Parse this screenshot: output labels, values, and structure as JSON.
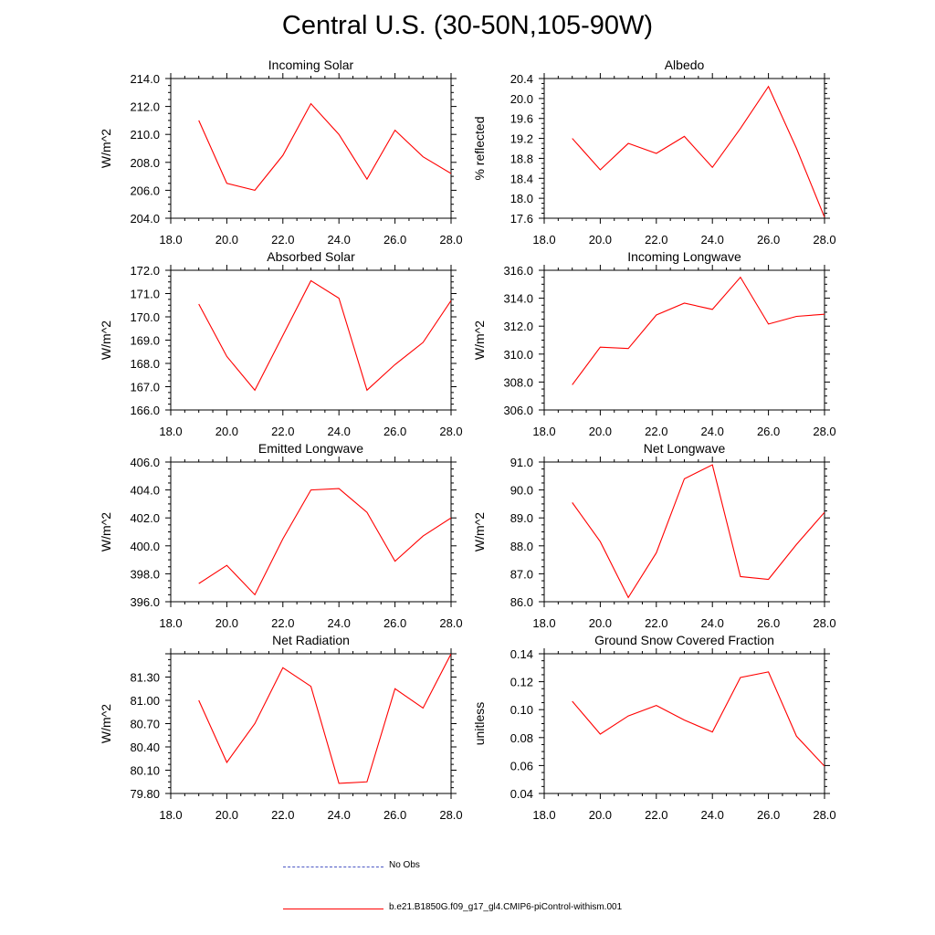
{
  "page": {
    "title": "Central U.S. (30-50N,105-90W)"
  },
  "legend": {
    "entries": [
      {
        "label": "No Obs",
        "color": "#4b57c4",
        "style": "dashed"
      },
      {
        "label": "b.e21.B1850G.f09_g17_gl4.CMIP6-piControl-withism.001",
        "color": "#ff0000",
        "style": "solid"
      }
    ]
  },
  "chart_data": [
    {
      "type": "line",
      "title": "Incoming Solar",
      "ylabel": "W/m^2",
      "xlim": [
        18,
        28
      ],
      "ylim": [
        204,
        214
      ],
      "xticks": [
        18,
        20,
        22,
        24,
        26,
        28
      ],
      "xtick_labels": [
        "18.0",
        "20.0",
        "22.0",
        "24.0",
        "26.0",
        "28.0"
      ],
      "yticks": [
        204,
        206,
        208,
        210,
        212,
        214
      ],
      "ytick_labels": [
        "204.0",
        "206.0",
        "208.0",
        "210.0",
        "212.0",
        "214.0"
      ],
      "x": [
        19,
        20,
        21,
        22,
        23,
        24,
        25,
        26,
        27,
        28
      ],
      "series": [
        {
          "color": "#ff0000",
          "values": [
            211.0,
            206.5,
            206.0,
            208.5,
            212.2,
            210.0,
            206.8,
            210.3,
            208.4,
            207.2
          ]
        }
      ]
    },
    {
      "type": "line",
      "title": "Albedo",
      "ylabel": "% reflected",
      "xlim": [
        18,
        28
      ],
      "ylim": [
        17.6,
        20.4
      ],
      "xticks": [
        18,
        20,
        22,
        24,
        26,
        28
      ],
      "xtick_labels": [
        "18.0",
        "20.0",
        "22.0",
        "24.0",
        "26.0",
        "28.0"
      ],
      "yticks": [
        17.6,
        18.0,
        18.4,
        18.8,
        19.2,
        19.6,
        20.0,
        20.4
      ],
      "ytick_labels": [
        "17.6",
        "18.0",
        "18.4",
        "18.8",
        "19.2",
        "19.6",
        "20.0",
        "20.4"
      ],
      "x": [
        19,
        20,
        21,
        22,
        23,
        24,
        25,
        26,
        27,
        28
      ],
      "series": [
        {
          "color": "#ff0000",
          "values": [
            19.2,
            18.57,
            19.1,
            18.9,
            19.24,
            18.62,
            19.4,
            20.24,
            19.0,
            17.62
          ]
        }
      ]
    },
    {
      "type": "line",
      "title": "Absorbed Solar",
      "ylabel": "W/m^2",
      "xlim": [
        18,
        28
      ],
      "ylim": [
        166,
        172
      ],
      "xticks": [
        18,
        20,
        22,
        24,
        26,
        28
      ],
      "xtick_labels": [
        "18.0",
        "20.0",
        "22.0",
        "24.0",
        "26.0",
        "28.0"
      ],
      "yticks": [
        166,
        167,
        168,
        169,
        170,
        171,
        172
      ],
      "ytick_labels": [
        "166.0",
        "167.0",
        "168.0",
        "169.0",
        "170.0",
        "171.0",
        "172.0"
      ],
      "x": [
        19,
        20,
        21,
        22,
        23,
        24,
        25,
        26,
        27,
        28
      ],
      "series": [
        {
          "color": "#ff0000",
          "values": [
            170.55,
            168.3,
            166.85,
            169.2,
            171.55,
            170.8,
            166.85,
            167.95,
            168.9,
            170.7
          ]
        }
      ]
    },
    {
      "type": "line",
      "title": "Incoming Longwave",
      "ylabel": "W/m^2",
      "xlim": [
        18,
        28
      ],
      "ylim": [
        306,
        316
      ],
      "xticks": [
        18,
        20,
        22,
        24,
        26,
        28
      ],
      "xtick_labels": [
        "18.0",
        "20.0",
        "22.0",
        "24.0",
        "26.0",
        "28.0"
      ],
      "yticks": [
        306,
        308,
        310,
        312,
        314,
        316
      ],
      "ytick_labels": [
        "306.0",
        "308.0",
        "310.0",
        "312.0",
        "314.0",
        "316.0"
      ],
      "x": [
        19,
        20,
        21,
        22,
        23,
        24,
        25,
        26,
        27,
        28
      ],
      "series": [
        {
          "color": "#ff0000",
          "values": [
            307.8,
            310.5,
            310.4,
            312.8,
            313.65,
            313.2,
            315.5,
            312.15,
            312.7,
            312.85
          ]
        }
      ]
    },
    {
      "type": "line",
      "title": "Emitted Longwave",
      "ylabel": "W/m^2",
      "xlim": [
        18,
        28
      ],
      "ylim": [
        396,
        406
      ],
      "xticks": [
        18,
        20,
        22,
        24,
        26,
        28
      ],
      "xtick_labels": [
        "18.0",
        "20.0",
        "22.0",
        "24.0",
        "26.0",
        "28.0"
      ],
      "yticks": [
        396,
        398,
        400,
        402,
        404,
        406
      ],
      "ytick_labels": [
        "396.0",
        "398.0",
        "400.0",
        "402.0",
        "404.0",
        "406.0"
      ],
      "x": [
        19,
        20,
        21,
        22,
        23,
        24,
        25,
        26,
        27,
        28
      ],
      "series": [
        {
          "color": "#ff0000",
          "values": [
            397.3,
            398.6,
            396.5,
            400.5,
            404.0,
            404.1,
            402.4,
            398.9,
            400.7,
            402.0
          ]
        }
      ]
    },
    {
      "type": "line",
      "title": "Net Longwave",
      "ylabel": "W/m^2",
      "xlim": [
        18,
        28
      ],
      "ylim": [
        86,
        91
      ],
      "xticks": [
        18,
        20,
        22,
        24,
        26,
        28
      ],
      "xtick_labels": [
        "18.0",
        "20.0",
        "22.0",
        "24.0",
        "26.0",
        "28.0"
      ],
      "yticks": [
        86,
        87,
        88,
        89,
        90,
        91
      ],
      "ytick_labels": [
        "86.0",
        "87.0",
        "88.0",
        "89.0",
        "90.0",
        "91.0"
      ],
      "x": [
        19,
        20,
        21,
        22,
        23,
        24,
        25,
        26,
        27,
        28
      ],
      "series": [
        {
          "color": "#ff0000",
          "values": [
            89.55,
            88.15,
            86.15,
            87.75,
            90.4,
            90.9,
            86.9,
            86.8,
            88.05,
            89.2
          ]
        }
      ]
    },
    {
      "type": "line",
      "title": "Net Radiation",
      "ylabel": "W/m^2",
      "xlim": [
        18,
        28
      ],
      "ylim": [
        79.8,
        81.6
      ],
      "xticks": [
        18,
        20,
        22,
        24,
        26,
        28
      ],
      "xtick_labels": [
        "18.0",
        "20.0",
        "22.0",
        "24.0",
        "26.0",
        "28.0"
      ],
      "yticks": [
        79.8,
        80.1,
        80.4,
        80.7,
        81.0,
        81.3
      ],
      "ytick_labels": [
        "79.80",
        "80.10",
        "80.40",
        "80.70",
        "81.00",
        "81.30"
      ],
      "x": [
        19,
        20,
        21,
        22,
        23,
        24,
        25,
        26,
        27,
        28
      ],
      "series": [
        {
          "color": "#ff0000",
          "values": [
            81.0,
            80.2,
            80.7,
            81.42,
            81.18,
            79.93,
            79.95,
            81.15,
            80.9,
            81.6
          ]
        }
      ]
    },
    {
      "type": "line",
      "title": "Ground Snow Covered Fraction",
      "ylabel": "unitless",
      "xlim": [
        18,
        28
      ],
      "ylim": [
        0.04,
        0.14
      ],
      "xticks": [
        18,
        20,
        22,
        24,
        26,
        28
      ],
      "xtick_labels": [
        "18.0",
        "20.0",
        "22.0",
        "24.0",
        "26.0",
        "28.0"
      ],
      "yticks": [
        0.04,
        0.06,
        0.08,
        0.1,
        0.12,
        0.14
      ],
      "ytick_labels": [
        "0.04",
        "0.06",
        "0.08",
        "0.10",
        "0.12",
        "0.14"
      ],
      "x": [
        19,
        20,
        21,
        22,
        23,
        24,
        25,
        26,
        27,
        28
      ],
      "series": [
        {
          "color": "#ff0000",
          "values": [
            0.106,
            0.0825,
            0.0955,
            0.103,
            0.0925,
            0.084,
            0.123,
            0.127,
            0.081,
            0.0595
          ]
        }
      ]
    }
  ]
}
